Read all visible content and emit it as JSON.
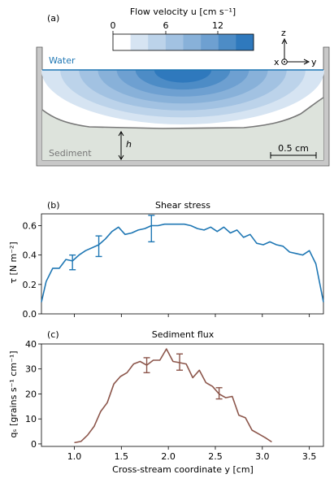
{
  "panel_a": {
    "label": "(a)",
    "colorbar": {
      "title": "Flow velocity u [cm s⁻¹]",
      "ticks": [
        "0",
        "6",
        "12"
      ],
      "colors": [
        "#ffffff",
        "#d6e4f2",
        "#bcd3ea",
        "#a2c2e2",
        "#88b1d9",
        "#6ea0d1",
        "#4d8cc6",
        "#2f79bd"
      ]
    },
    "water_label": "Water",
    "sediment_label": "Sediment",
    "h_label": "h",
    "scale_label": "0.5 cm",
    "axes_labels": {
      "z": "z",
      "x": "x",
      "y": "y"
    },
    "colors": {
      "water_line": "#1f77b4",
      "sediment": "#dde3dc",
      "bed_line": "#777777",
      "tank": "#c8c8c8"
    }
  },
  "chart_data": [
    {
      "type": "line",
      "panel_label": "(b)",
      "title": "Shear stress",
      "ylabel": "τ  [N m⁻²]",
      "xlim": [
        0.65,
        3.65
      ],
      "ylim": [
        0.0,
        0.68
      ],
      "yticks": [
        0.0,
        0.2,
        0.4,
        0.6
      ],
      "ytick_labels": [
        "0.0",
        "0.2",
        "0.4",
        "0.6"
      ],
      "color": "#1f77b4",
      "x": [
        0.65,
        0.7,
        0.77,
        0.84,
        0.91,
        0.98,
        1.05,
        1.12,
        1.19,
        1.26,
        1.33,
        1.4,
        1.47,
        1.54,
        1.61,
        1.68,
        1.75,
        1.82,
        1.89,
        1.96,
        2.03,
        2.1,
        2.17,
        2.24,
        2.31,
        2.38,
        2.45,
        2.52,
        2.59,
        2.66,
        2.73,
        2.8,
        2.87,
        2.94,
        3.01,
        3.08,
        3.15,
        3.22,
        3.29,
        3.36,
        3.43,
        3.5,
        3.57,
        3.65
      ],
      "y": [
        0.08,
        0.22,
        0.31,
        0.31,
        0.37,
        0.36,
        0.4,
        0.43,
        0.45,
        0.47,
        0.51,
        0.56,
        0.59,
        0.54,
        0.55,
        0.57,
        0.58,
        0.6,
        0.6,
        0.61,
        0.61,
        0.61,
        0.61,
        0.6,
        0.58,
        0.57,
        0.59,
        0.56,
        0.59,
        0.55,
        0.57,
        0.52,
        0.54,
        0.48,
        0.47,
        0.49,
        0.47,
        0.46,
        0.42,
        0.41,
        0.4,
        0.43,
        0.34,
        0.08
      ],
      "error_bars": [
        {
          "x": 0.98,
          "y": 0.36,
          "lo": 0.3,
          "hi": 0.4
        },
        {
          "x": 1.26,
          "y": 0.47,
          "lo": 0.39,
          "hi": 0.53
        },
        {
          "x": 1.82,
          "y": 0.6,
          "lo": 0.49,
          "hi": 0.67
        }
      ],
      "grid": false
    },
    {
      "type": "line",
      "panel_label": "(c)",
      "title": "Sediment flux",
      "ylabel": "qₛ  [grains s⁻¹ cm⁻¹]",
      "xlabel": "Cross-stream coordinate y  [cm]",
      "xlim": [
        0.65,
        3.65
      ],
      "ylim": [
        -1,
        40
      ],
      "xticks": [
        1.0,
        1.5,
        2.0,
        2.5,
        3.0,
        3.5
      ],
      "xtick_labels": [
        "1.0",
        "1.5",
        "2.0",
        "2.5",
        "3.0",
        "3.5"
      ],
      "yticks": [
        0,
        10,
        20,
        30,
        40
      ],
      "ytick_labels": [
        "0",
        "10",
        "20",
        "30",
        "40"
      ],
      "color": "#8c564b",
      "x": [
        1.0,
        1.07,
        1.14,
        1.21,
        1.28,
        1.35,
        1.42,
        1.49,
        1.56,
        1.63,
        1.7,
        1.77,
        1.84,
        1.91,
        1.98,
        2.05,
        2.12,
        2.19,
        2.26,
        2.33,
        2.4,
        2.47,
        2.54,
        2.61,
        2.68,
        2.75,
        2.82,
        2.89,
        2.96,
        3.03,
        3.1
      ],
      "y": [
        0.5,
        1.0,
        3.5,
        7.0,
        13.0,
        16.5,
        24.0,
        27.0,
        28.5,
        32.0,
        33.0,
        31.5,
        33.5,
        33.5,
        38.0,
        33.0,
        32.5,
        32.0,
        26.5,
        29.5,
        24.5,
        23.0,
        20.0,
        18.5,
        19.0,
        11.5,
        10.5,
        5.5,
        4.0,
        2.5,
        0.8
      ],
      "error_bars": [
        {
          "x": 1.77,
          "y": 31.5,
          "lo": 28.5,
          "hi": 34.5
        },
        {
          "x": 2.12,
          "y": 32.5,
          "lo": 29.5,
          "hi": 36.0
        },
        {
          "x": 2.54,
          "y": 20.0,
          "lo": 18.0,
          "hi": 22.5
        }
      ],
      "grid": false
    }
  ]
}
